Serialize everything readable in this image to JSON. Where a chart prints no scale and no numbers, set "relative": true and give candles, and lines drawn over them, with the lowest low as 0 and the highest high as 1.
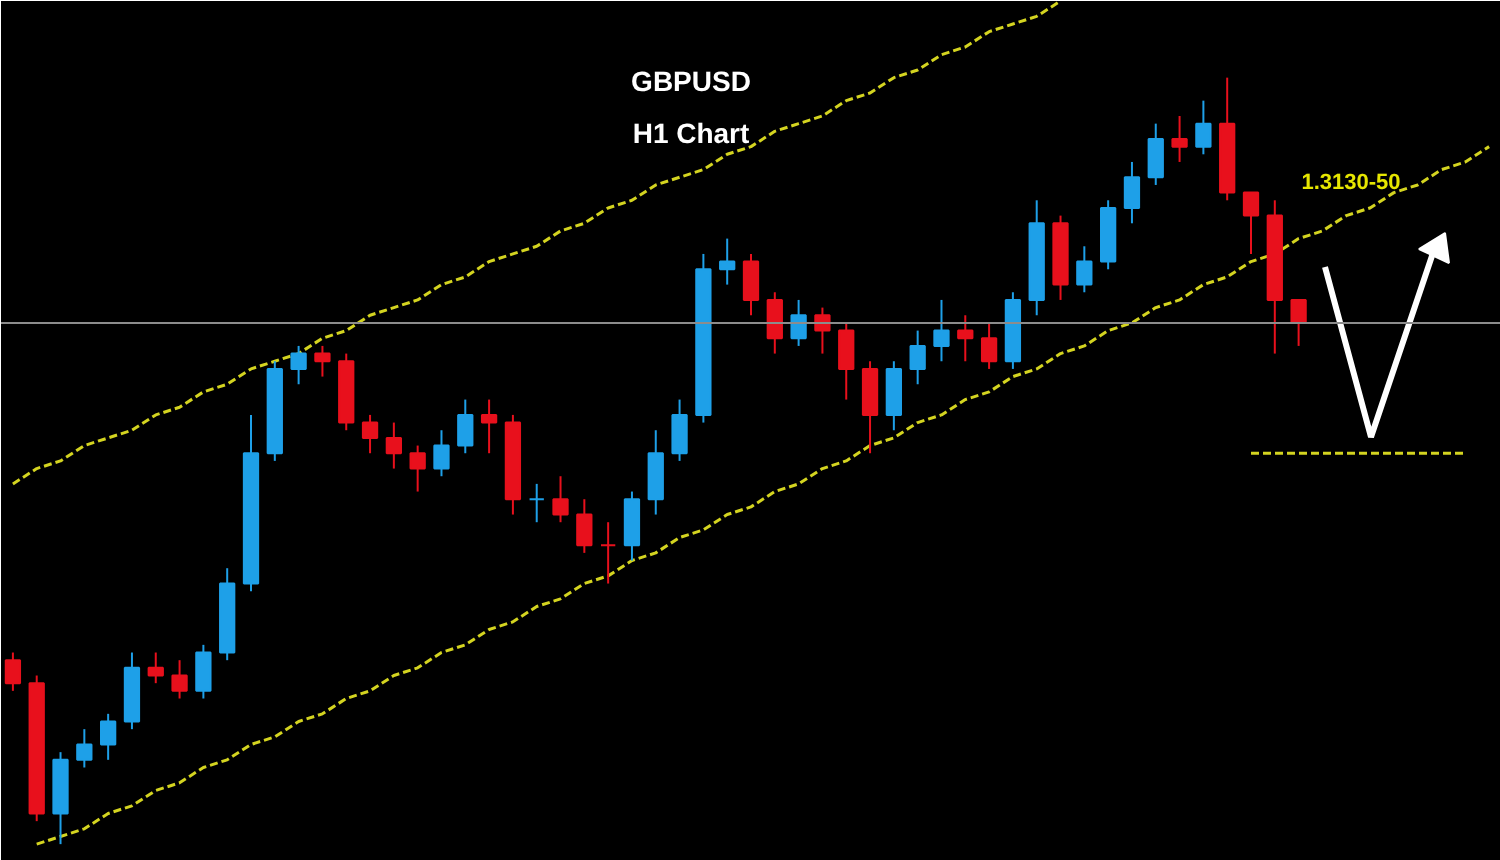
{
  "chart_data": {
    "type": "candlestick",
    "title": "GBPUSD",
    "subtitle": "H1 Chart",
    "relative": true,
    "categories": [
      null,
      null,
      null,
      null,
      null,
      null,
      null,
      null,
      null,
      null,
      null,
      null,
      null,
      null,
      null,
      null,
      null,
      null,
      null,
      null,
      null,
      null,
      null,
      null,
      null,
      null,
      null,
      null,
      null,
      null,
      null,
      null,
      null,
      null,
      null,
      null,
      null,
      null,
      null,
      null,
      null,
      null,
      null,
      null,
      null,
      null,
      null,
      null,
      null,
      null,
      null,
      null,
      null,
      null,
      null,
      null,
      null,
      null,
      null,
      null,
      null,
      null,
      null
    ],
    "ohlc": [
      [
        0.24,
        0.25,
        0.2,
        0.21
      ],
      [
        0.21,
        0.22,
        0.03,
        0.04
      ],
      [
        0.04,
        0.12,
        0,
        0.11
      ],
      [
        0.11,
        0.15,
        0.1,
        0.13
      ],
      [
        0.13,
        0.17,
        0.11,
        0.16
      ],
      [
        0.16,
        0.25,
        0.15,
        0.23
      ],
      [
        0.23,
        0.25,
        0.21,
        0.22
      ],
      [
        0.22,
        0.24,
        0.19,
        0.2
      ],
      [
        0.2,
        0.26,
        0.19,
        0.25
      ],
      [
        0.25,
        0.36,
        0.24,
        0.34
      ],
      [
        0.34,
        0.56,
        0.33,
        0.51
      ],
      [
        0.51,
        0.63,
        0.5,
        0.62
      ],
      [
        0.62,
        0.65,
        0.6,
        0.64
      ],
      [
        0.64,
        0.65,
        0.61,
        0.63
      ],
      [
        0.63,
        0.64,
        0.54,
        0.55
      ],
      [
        0.55,
        0.56,
        0.51,
        0.53
      ],
      [
        0.53,
        0.55,
        0.49,
        0.51
      ],
      [
        0.51,
        0.52,
        0.46,
        0.49
      ],
      [
        0.49,
        0.54,
        0.48,
        0.52
      ],
      [
        0.52,
        0.58,
        0.51,
        0.56
      ],
      [
        0.56,
        0.58,
        0.51,
        0.55
      ],
      [
        0.55,
        0.56,
        0.43,
        0.45
      ],
      [
        0.45,
        0.47,
        0.42,
        0.45
      ],
      [
        0.45,
        0.48,
        0.42,
        0.43
      ],
      [
        0.43,
        0.45,
        0.38,
        0.39
      ],
      [
        0.39,
        0.42,
        0.34,
        0.39
      ],
      [
        0.39,
        0.46,
        0.37,
        0.45
      ],
      [
        0.45,
        0.54,
        0.43,
        0.51
      ],
      [
        0.51,
        0.58,
        0.5,
        0.56
      ],
      [
        0.56,
        0.77,
        0.55,
        0.75
      ],
      [
        0.75,
        0.79,
        0.73,
        0.76
      ],
      [
        0.76,
        0.77,
        0.69,
        0.71
      ],
      [
        0.71,
        0.72,
        0.64,
        0.66
      ],
      [
        0.66,
        0.71,
        0.65,
        0.69
      ],
      [
        0.69,
        0.7,
        0.64,
        0.67
      ],
      [
        0.67,
        0.68,
        0.58,
        0.62
      ],
      [
        0.62,
        0.63,
        0.51,
        0.56
      ],
      [
        0.56,
        0.63,
        0.54,
        0.62
      ],
      [
        0.62,
        0.67,
        0.6,
        0.65
      ],
      [
        0.65,
        0.71,
        0.63,
        0.67
      ],
      [
        0.67,
        0.69,
        0.63,
        0.66
      ],
      [
        0.66,
        0.68,
        0.62,
        0.63
      ],
      [
        0.63,
        0.72,
        0.62,
        0.71
      ],
      [
        0.71,
        0.84,
        0.69,
        0.81
      ],
      [
        0.81,
        0.82,
        0.71,
        0.73
      ],
      [
        0.73,
        0.78,
        0.72,
        0.76
      ],
      [
        0.76,
        0.84,
        0.75,
        0.83
      ],
      [
        0.83,
        0.89,
        0.81,
        0.87
      ],
      [
        0.87,
        0.94,
        0.86,
        0.92
      ],
      [
        0.92,
        0.95,
        0.89,
        0.91
      ],
      [
        0.91,
        0.97,
        0.9,
        0.94
      ],
      [
        0.94,
        1,
        0.84,
        0.85
      ],
      [
        0.85,
        0.85,
        0.77,
        0.82
      ],
      [
        0.82,
        0.84,
        0.64,
        0.71
      ],
      [
        0.71,
        0.71,
        0.65,
        0.68
      ],
      null,
      null,
      null,
      null,
      null,
      null,
      null,
      null
    ],
    "colors": [
      "#e8101c",
      "#e8101c",
      "#1ea0e8",
      "#1ea0e8",
      "#1ea0e8",
      "#1ea0e8",
      "#e8101c",
      "#e8101c",
      "#1ea0e8",
      "#1ea0e8",
      "#1ea0e8",
      "#1ea0e8",
      "#1ea0e8",
      "#e8101c",
      "#e8101c",
      "#e8101c",
      "#e8101c",
      "#e8101c",
      "#1ea0e8",
      "#1ea0e8",
      "#e8101c",
      "#e8101c",
      "#1ea0e8",
      "#e8101c",
      "#e8101c",
      "#e8101c",
      "#1ea0e8",
      "#1ea0e8",
      "#1ea0e8",
      "#1ea0e8",
      "#1ea0e8",
      "#e8101c",
      "#e8101c",
      "#1ea0e8",
      "#e8101c",
      "#e8101c",
      "#e8101c",
      "#1ea0e8",
      "#1ea0e8",
      "#1ea0e8",
      "#e8101c",
      "#e8101c",
      "#1ea0e8",
      "#1ea0e8",
      "#e8101c",
      "#1ea0e8",
      "#1ea0e8",
      "#1ea0e8",
      "#1ea0e8",
      "#e8101c",
      "#1ea0e8",
      "#e8101c",
      "#e8101c",
      "#e8101c",
      "#e8101c",
      null,
      null,
      null,
      null,
      null,
      null,
      null,
      null
    ],
    "series": [
      {
        "type": "line",
        "color": "#d4d420",
        "line_style": "dashed",
        "values": [
          0.47,
          0.49,
          0.5,
          0.52,
          0.53,
          0.54,
          0.56,
          0.57,
          0.59,
          0.6,
          0.62,
          0.63,
          0.64,
          0.66,
          0.67,
          0.69,
          0.7,
          0.71,
          0.73,
          0.74,
          0.76,
          0.77,
          0.78,
          0.8,
          0.81,
          0.83,
          0.84,
          0.86,
          0.87,
          0.88,
          0.9,
          0.91,
          0.93,
          0.94,
          0.95,
          0.97,
          0.98,
          1.0,
          1.01,
          1.03,
          1.04,
          1.06,
          1.07,
          1.08,
          1.1,
          null,
          null,
          null,
          null,
          null,
          null,
          null,
          null,
          null,
          null,
          null,
          null,
          null,
          null,
          null,
          null,
          null,
          null
        ]
      },
      {
        "type": "line",
        "color": "#d4d420",
        "line_style": "dashed",
        "values": [
          null,
          0,
          0.01,
          0.02,
          0.04,
          0.05,
          0.07,
          0.08,
          0.1,
          0.11,
          0.13,
          0.14,
          0.16,
          0.17,
          0.19,
          0.2,
          0.22,
          0.23,
          0.25,
          0.26,
          0.28,
          0.29,
          0.31,
          0.32,
          0.34,
          0.35,
          0.37,
          0.38,
          0.4,
          0.41,
          0.43,
          0.44,
          0.46,
          0.47,
          0.49,
          0.5,
          0.52,
          0.53,
          0.55,
          0.56,
          0.58,
          0.59,
          0.61,
          0.62,
          0.64,
          0.65,
          0.67,
          0.68,
          0.7,
          0.71,
          0.73,
          0.74,
          0.76,
          0.77,
          0.79,
          0.8,
          0.82,
          0.83,
          0.85,
          0.86,
          0.88,
          0.89,
          0.91
        ]
      },
      {
        "type": "line",
        "color": "#d4d420",
        "line_style": "dashed",
        "values": [
          null,
          null,
          null,
          null,
          null,
          null,
          null,
          null,
          null,
          null,
          null,
          null,
          null,
          null,
          null,
          null,
          null,
          null,
          null,
          null,
          null,
          null,
          null,
          null,
          null,
          null,
          null,
          null,
          null,
          null,
          null,
          null,
          null,
          null,
          null,
          null,
          null,
          null,
          null,
          null,
          null,
          null,
          null,
          null,
          null,
          null,
          null,
          null,
          null,
          null,
          null,
          null,
          0.51,
          0.51,
          0.51,
          0.51,
          0.51,
          0.51,
          0.51,
          0.51,
          0.51,
          0.51,
          null
        ]
      }
    ],
    "ref_lines": [
      {
        "axis": "y",
        "value": 0.68,
        "color": "#8c8c8c"
      }
    ],
    "annotations": [
      "1.3130-50"
    ]
  }
}
